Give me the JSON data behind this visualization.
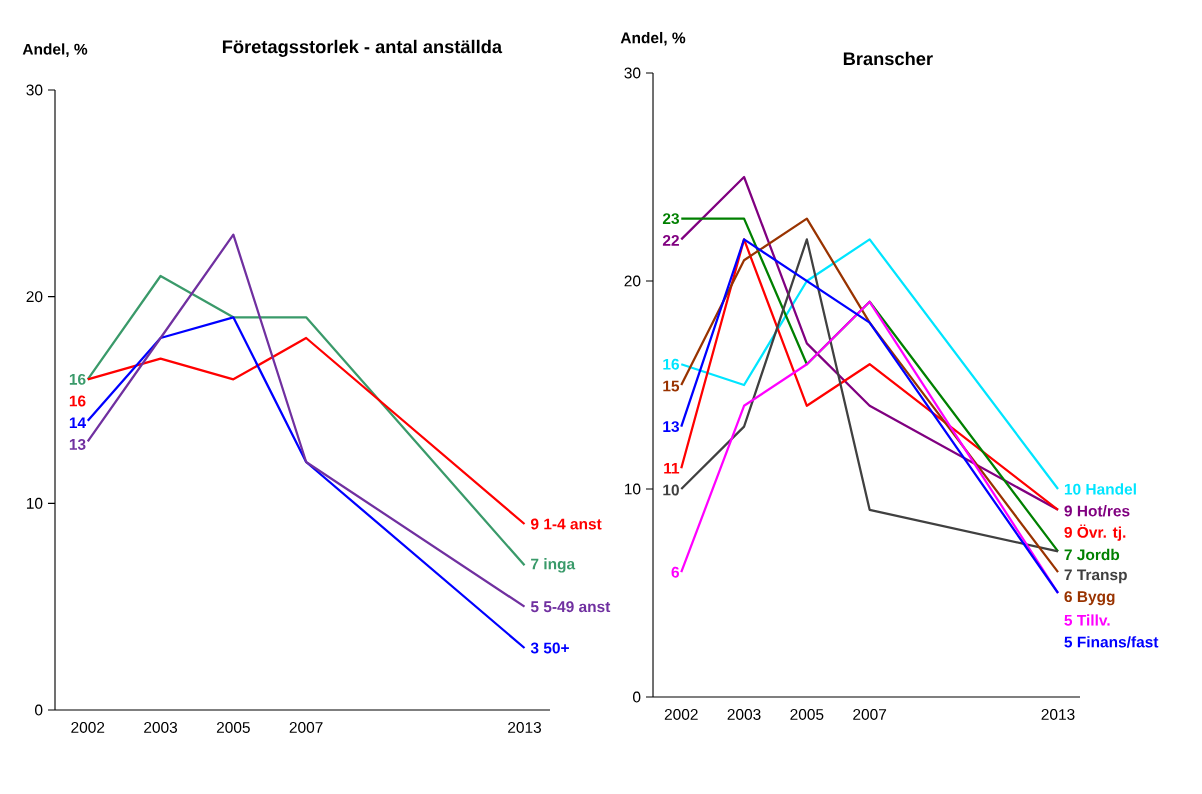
{
  "chart_data": [
    {
      "type": "line",
      "title": "Företagsstorlek - antal anställda",
      "ylabel": "Andel, %",
      "categories": [
        "2002",
        "2003",
        "2005",
        "2007",
        null,
        null,
        "2013"
      ],
      "ylim": [
        0,
        30
      ],
      "yticks": [
        0,
        10,
        20,
        30
      ],
      "series": [
        {
          "name": "inga",
          "color": "#3a9a6a",
          "values": [
            16,
            21,
            19,
            19,
            null,
            null,
            7
          ],
          "value_labels": [
            "16",
            null,
            null,
            null,
            null,
            null,
            "7"
          ]
        },
        {
          "name": "1-4 anst",
          "color": "#ff0000",
          "values": [
            16,
            17,
            16,
            18,
            null,
            null,
            9
          ],
          "value_labels": [
            "16",
            null,
            null,
            null,
            null,
            null,
            "9"
          ]
        },
        {
          "name": "50+",
          "color": "#0000ff",
          "values": [
            14,
            18,
            19,
            12,
            null,
            null,
            3
          ],
          "value_labels": [
            "14",
            null,
            null,
            null,
            null,
            null,
            "3"
          ]
        },
        {
          "name": "5-49 anst",
          "color": "#7030a0",
          "values": [
            13,
            18,
            23,
            12,
            null,
            null,
            5
          ],
          "value_labels": [
            "13",
            null,
            null,
            null,
            null,
            null,
            "5"
          ]
        }
      ]
    },
    {
      "type": "line",
      "title": "Branscher",
      "ylabel": "Andel, %",
      "categories": [
        "2002",
        "2003",
        "2005",
        "2007",
        null,
        null,
        "2013"
      ],
      "ylim": [
        0,
        30
      ],
      "yticks": [
        0,
        10,
        20,
        30
      ],
      "series": [
        {
          "name": "Handel",
          "color": "#00e5ff",
          "values": [
            16,
            15,
            20,
            22,
            null,
            null,
            10
          ],
          "value_labels": [
            "16",
            null,
            null,
            null,
            null,
            null,
            "10"
          ]
        },
        {
          "name": "Hot/res",
          "color": "#800080",
          "values": [
            22,
            25,
            17,
            14,
            null,
            null,
            9
          ],
          "value_labels": [
            "22",
            null,
            null,
            null,
            null,
            null,
            "9"
          ]
        },
        {
          "name": "Övr. tj.",
          "color": "#ff0000",
          "values": [
            11,
            22,
            14,
            16,
            null,
            null,
            9
          ],
          "value_labels": [
            "11",
            null,
            null,
            null,
            null,
            null,
            "9"
          ]
        },
        {
          "name": "Jordb",
          "color": "#008000",
          "values": [
            23,
            23,
            16,
            19,
            null,
            null,
            7
          ],
          "value_labels": [
            "23",
            null,
            null,
            null,
            null,
            null,
            "7"
          ]
        },
        {
          "name": "Transp",
          "color": "#404040",
          "values": [
            10,
            13,
            22,
            9,
            null,
            null,
            7
          ],
          "value_labels": [
            "10",
            null,
            null,
            null,
            null,
            null,
            "7"
          ]
        },
        {
          "name": "Bygg",
          "color": "#993300",
          "values": [
            15,
            21,
            23,
            18,
            null,
            null,
            6
          ],
          "value_labels": [
            "15",
            null,
            null,
            null,
            null,
            null,
            "6"
          ]
        },
        {
          "name": "Tillv.",
          "color": "#ff00ff",
          "values": [
            6,
            14,
            16,
            19,
            null,
            null,
            5
          ],
          "value_labels": [
            "6",
            null,
            null,
            null,
            null,
            null,
            "5"
          ]
        },
        {
          "name": "Finans/fast",
          "color": "#0000ff",
          "values": [
            13,
            22,
            20,
            18,
            null,
            null,
            5
          ],
          "value_labels": [
            "13",
            null,
            null,
            null,
            null,
            null,
            "5"
          ]
        }
      ]
    }
  ]
}
